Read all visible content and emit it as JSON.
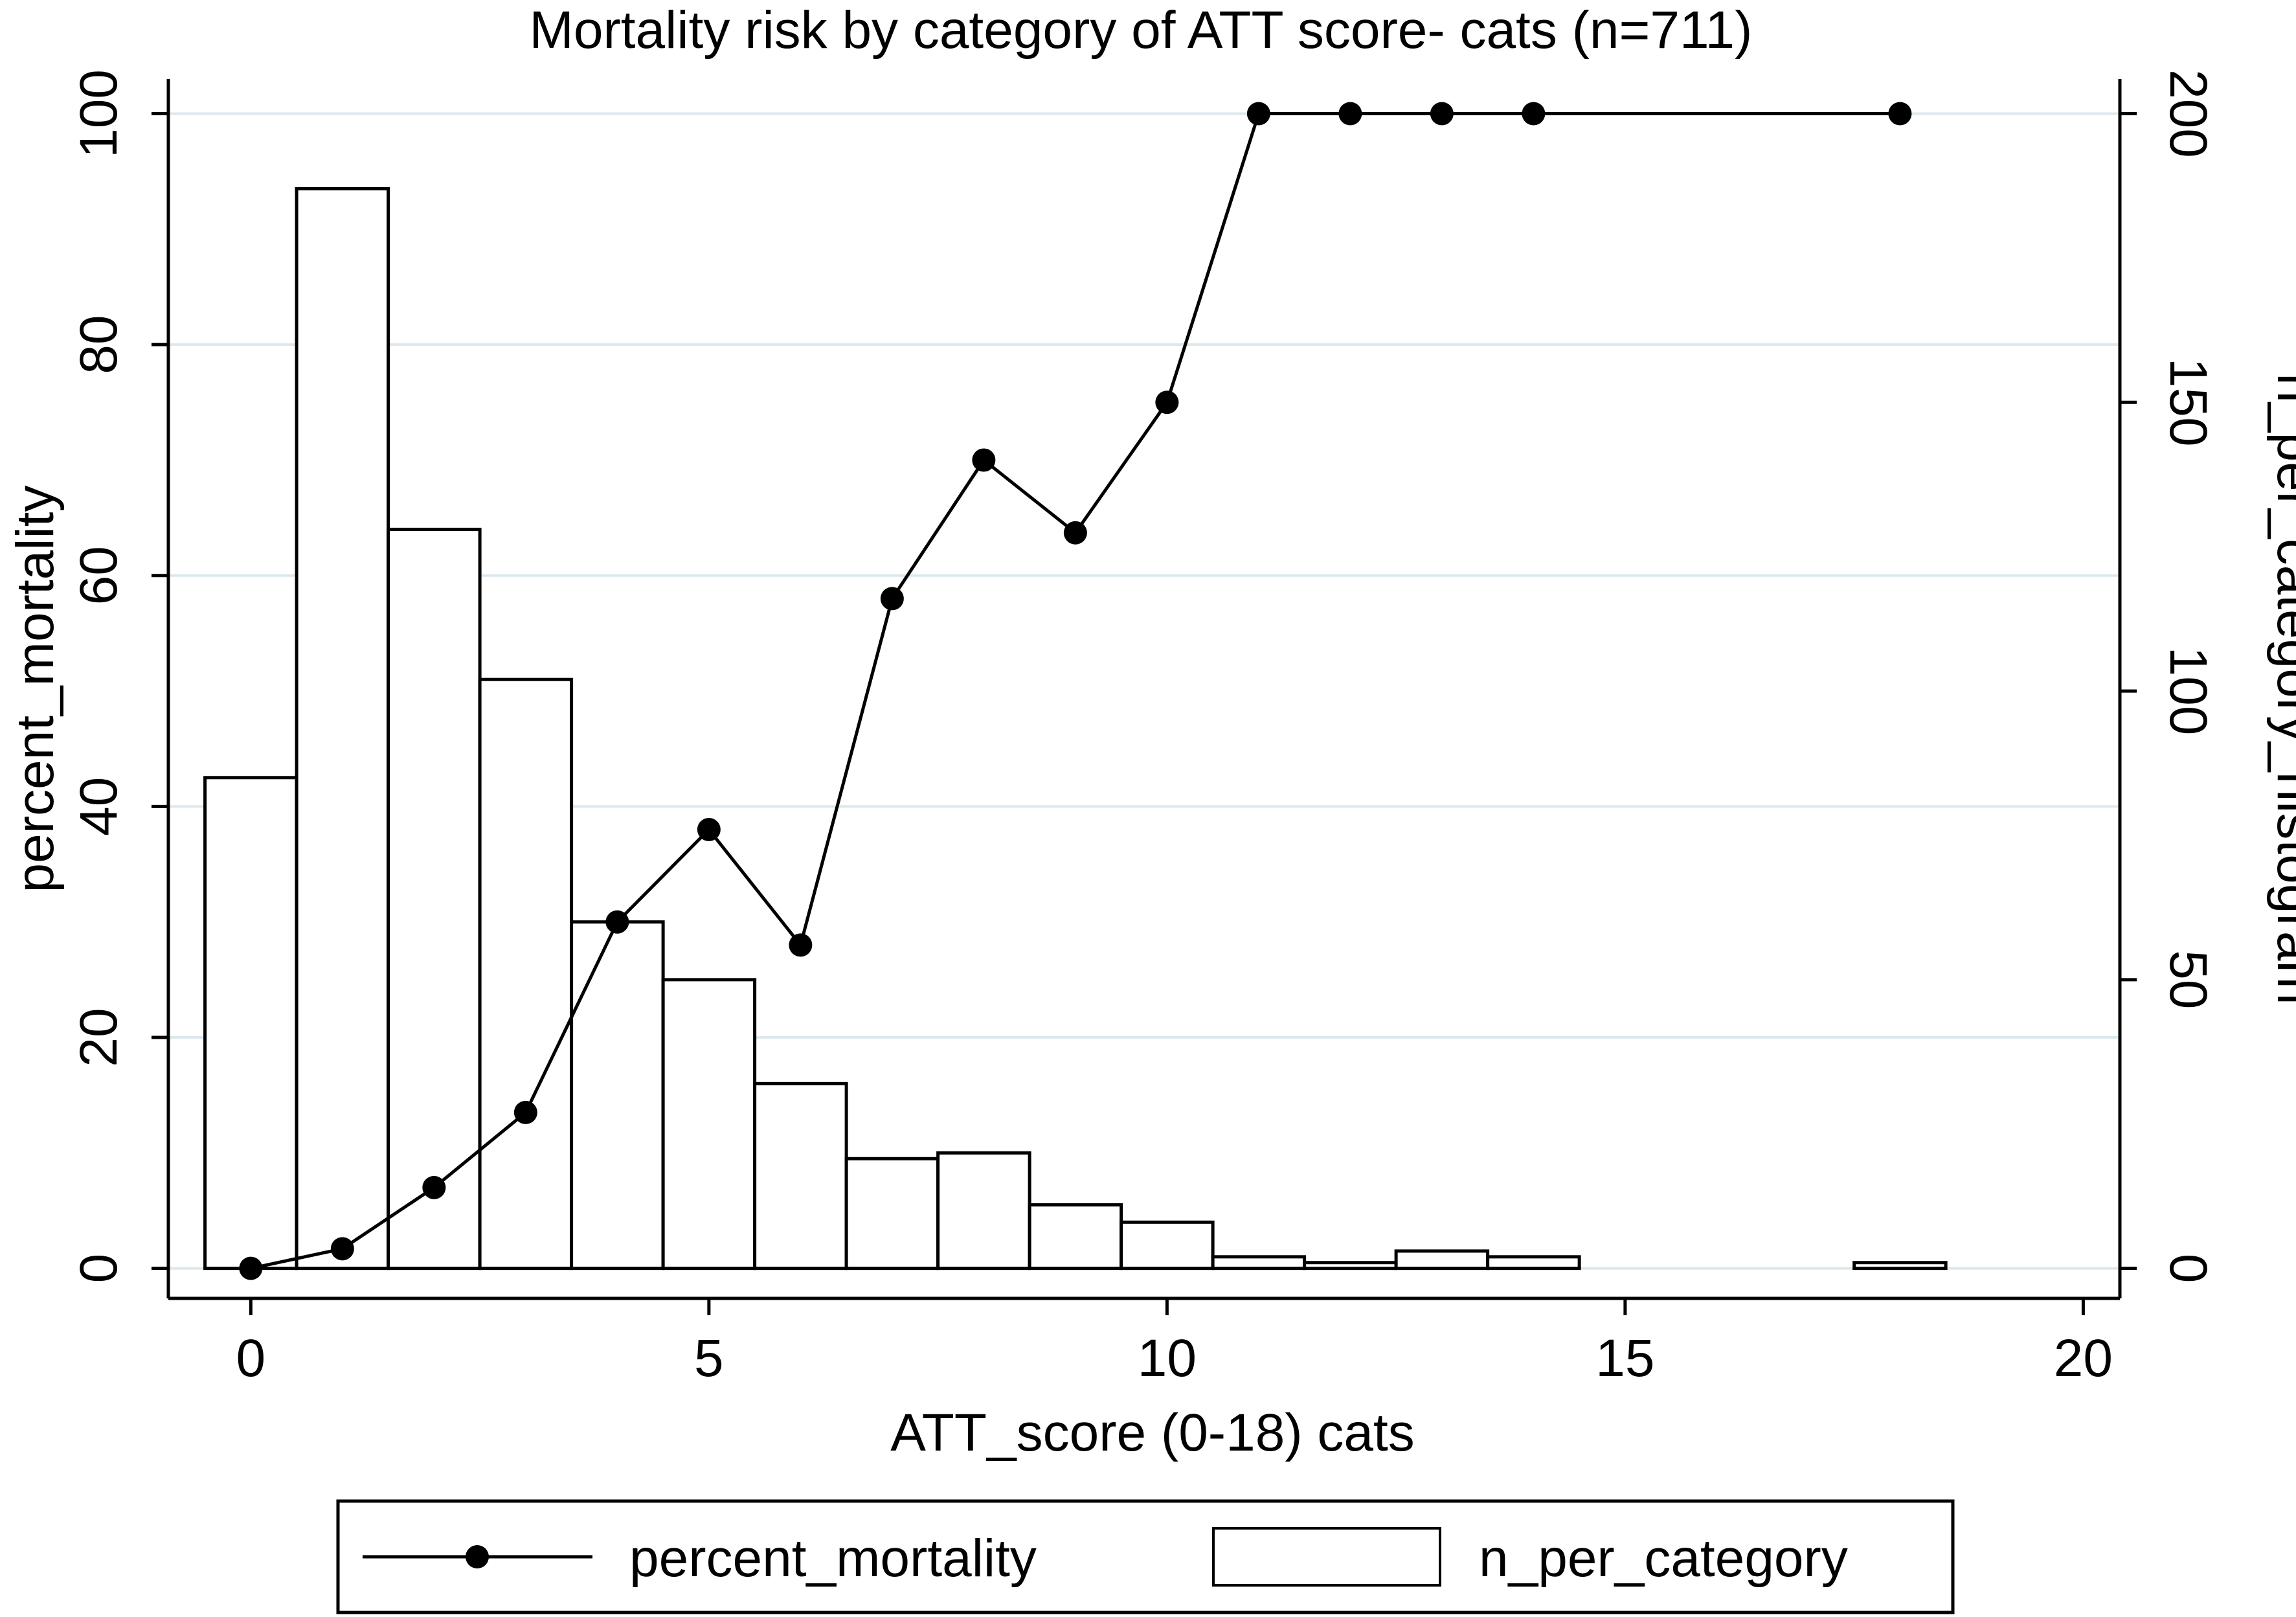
{
  "chart_data": {
    "type": "bar+line",
    "title": "Mortality risk by category of ATT score- cats (n=711)",
    "xlabel": "ATT_score (0-18) cats",
    "ylabel_left": "percent_mortality",
    "ylabel_right": "n_per_category_histogram",
    "xlim": [
      -0.9,
      20.4
    ],
    "ylim_left": [
      -2.6,
      103
    ],
    "ylim_right": [
      -5.2,
      206
    ],
    "x_ticks": [
      0,
      5,
      10,
      15,
      20
    ],
    "y_ticks_left": [
      0,
      20,
      40,
      60,
      80,
      100
    ],
    "y_ticks_right": [
      0,
      50,
      100,
      150,
      200
    ],
    "grid": true,
    "legend_position": "bottom",
    "series": [
      {
        "name": "percent_mortality",
        "kind": "line",
        "axis": "left",
        "x": [
          0,
          1,
          2,
          3,
          4,
          5,
          6,
          7,
          8,
          9,
          10,
          11,
          12,
          13,
          14,
          18
        ],
        "values": [
          0,
          1.7,
          7,
          13.5,
          30,
          38,
          28,
          58,
          70,
          63.7,
          75,
          100,
          100,
          100,
          100,
          100
        ]
      },
      {
        "name": "n_per_category",
        "kind": "bar",
        "axis": "right",
        "x": [
          0,
          1,
          2,
          3,
          4,
          5,
          6,
          7,
          8,
          9,
          10,
          11,
          12,
          13,
          14,
          18
        ],
        "values": [
          85,
          187,
          128,
          102,
          60,
          50,
          32,
          19,
          20,
          11,
          8,
          2,
          1,
          3,
          2,
          1
        ]
      }
    ]
  },
  "colors": {
    "plot_background": "#ffffff",
    "outer_background": "#ffffff",
    "gridline": "#dde8ee",
    "axis": "#000000",
    "line": "#000000",
    "marker": "#000000",
    "bar_fill": "#ffffff",
    "bar_stroke": "#000000"
  }
}
